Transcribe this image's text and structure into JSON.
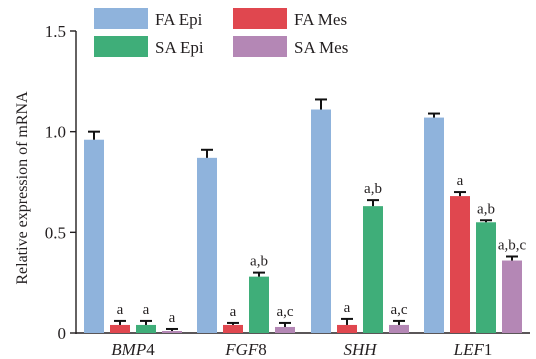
{
  "chart_data": {
    "type": "bar",
    "ylabel": "Relative expression of mRNA",
    "ylim": [
      0,
      1.5
    ],
    "yticks": [
      "0",
      "0.5",
      "1.0",
      "1.5"
    ],
    "grid": false,
    "legend_position": "top",
    "categories": [
      {
        "italic": "BMP",
        "upright": "4"
      },
      {
        "italic": "FGF",
        "upright": "8"
      },
      {
        "italic": "SHH",
        "upright": ""
      },
      {
        "italic": "LEF",
        "upright": "1"
      }
    ],
    "series": [
      {
        "name": "FA Epi",
        "color": "#8fb3dc",
        "values": [
          0.96,
          0.87,
          1.11,
          1.07
        ],
        "errors": [
          0.04,
          0.04,
          0.05,
          0.02
        ],
        "annotations": [
          "",
          "",
          "",
          ""
        ]
      },
      {
        "name": "FA Mes",
        "color": "#e0474f",
        "values": [
          0.04,
          0.04,
          0.04,
          0.68
        ],
        "errors": [
          0.02,
          0.01,
          0.03,
          0.02
        ],
        "annotations": [
          "a",
          "a",
          "a",
          "a"
        ]
      },
      {
        "name": "SA Epi",
        "color": "#3fae79",
        "values": [
          0.04,
          0.28,
          0.63,
          0.55
        ],
        "errors": [
          0.02,
          0.02,
          0.03,
          0.01
        ],
        "annotations": [
          "a",
          "a,b",
          "a,b",
          "a,b"
        ]
      },
      {
        "name": "SA Mes",
        "color": "#b487b5",
        "values": [
          0.01,
          0.03,
          0.04,
          0.36
        ],
        "errors": [
          0.01,
          0.02,
          0.02,
          0.02
        ],
        "annotations": [
          "a",
          "a,c",
          "a,c",
          "a,b,c"
        ]
      }
    ]
  }
}
